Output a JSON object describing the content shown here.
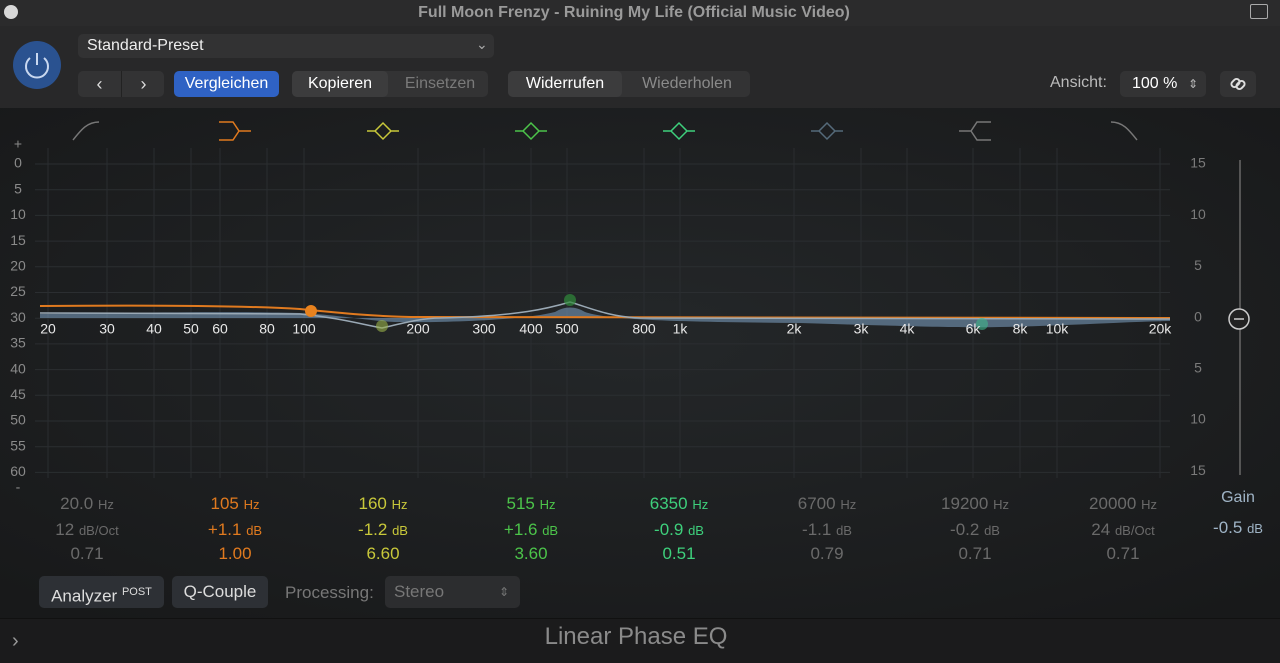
{
  "window": {
    "title": "Full Moon Frenzy - Ruining My Life (Official Music Video)"
  },
  "toolbar": {
    "preset": "Standard-Preset",
    "compare": "Vergleichen",
    "copy": "Kopieren",
    "paste": "Einsetzen",
    "undo": "Widerrufen",
    "redo": "Wiederholen",
    "view_label": "Ansicht:",
    "view_value": "100 %"
  },
  "graph": {
    "left_scale": [
      "+",
      "0",
      "5",
      "10",
      "15",
      "20",
      "25",
      "30",
      "35",
      "40",
      "45",
      "50",
      "55",
      "60",
      "-"
    ],
    "right_scale": [
      "15",
      "10",
      "5",
      "0",
      "5",
      "10",
      "15"
    ],
    "freq_labels": [
      "20",
      "30",
      "40",
      "50",
      "60",
      "80",
      "100",
      "200",
      "300",
      "400",
      "500",
      "800",
      "1k",
      "2k",
      "3k",
      "4k",
      "6k",
      "8k",
      "10k",
      "20k"
    ]
  },
  "bands": [
    {
      "freq": "20.0",
      "freq_unit": "Hz",
      "gain": "12",
      "gain_unit": "dB/Oct",
      "q": "0.71"
    },
    {
      "freq": "105",
      "freq_unit": "Hz",
      "gain": "+1.1",
      "gain_unit": "dB",
      "q": "1.00"
    },
    {
      "freq": "160",
      "freq_unit": "Hz",
      "gain": "-1.2",
      "gain_unit": "dB",
      "q": "6.60"
    },
    {
      "freq": "515",
      "freq_unit": "Hz",
      "gain": "+1.6",
      "gain_unit": "dB",
      "q": "3.60"
    },
    {
      "freq": "6350",
      "freq_unit": "Hz",
      "gain": "-0.9",
      "gain_unit": "dB",
      "q": "0.51"
    },
    {
      "freq": "6700",
      "freq_unit": "Hz",
      "gain": "-1.1",
      "gain_unit": "dB",
      "q": "0.79"
    },
    {
      "freq": "19200",
      "freq_unit": "Hz",
      "gain": "-0.2",
      "gain_unit": "dB",
      "q": "0.71"
    },
    {
      "freq": "20000",
      "freq_unit": "Hz",
      "gain": "24",
      "gain_unit": "dB/Oct",
      "q": "0.71"
    }
  ],
  "master_gain": {
    "label": "Gain",
    "value": "-0.5",
    "unit": "dB"
  },
  "footer": {
    "analyzer": "Analyzer",
    "analyzer_mode": "POST",
    "q_couple": "Q-Couple",
    "processing_label": "Processing:",
    "processing_value": "Stereo",
    "plugin_name": "Linear Phase EQ"
  }
}
